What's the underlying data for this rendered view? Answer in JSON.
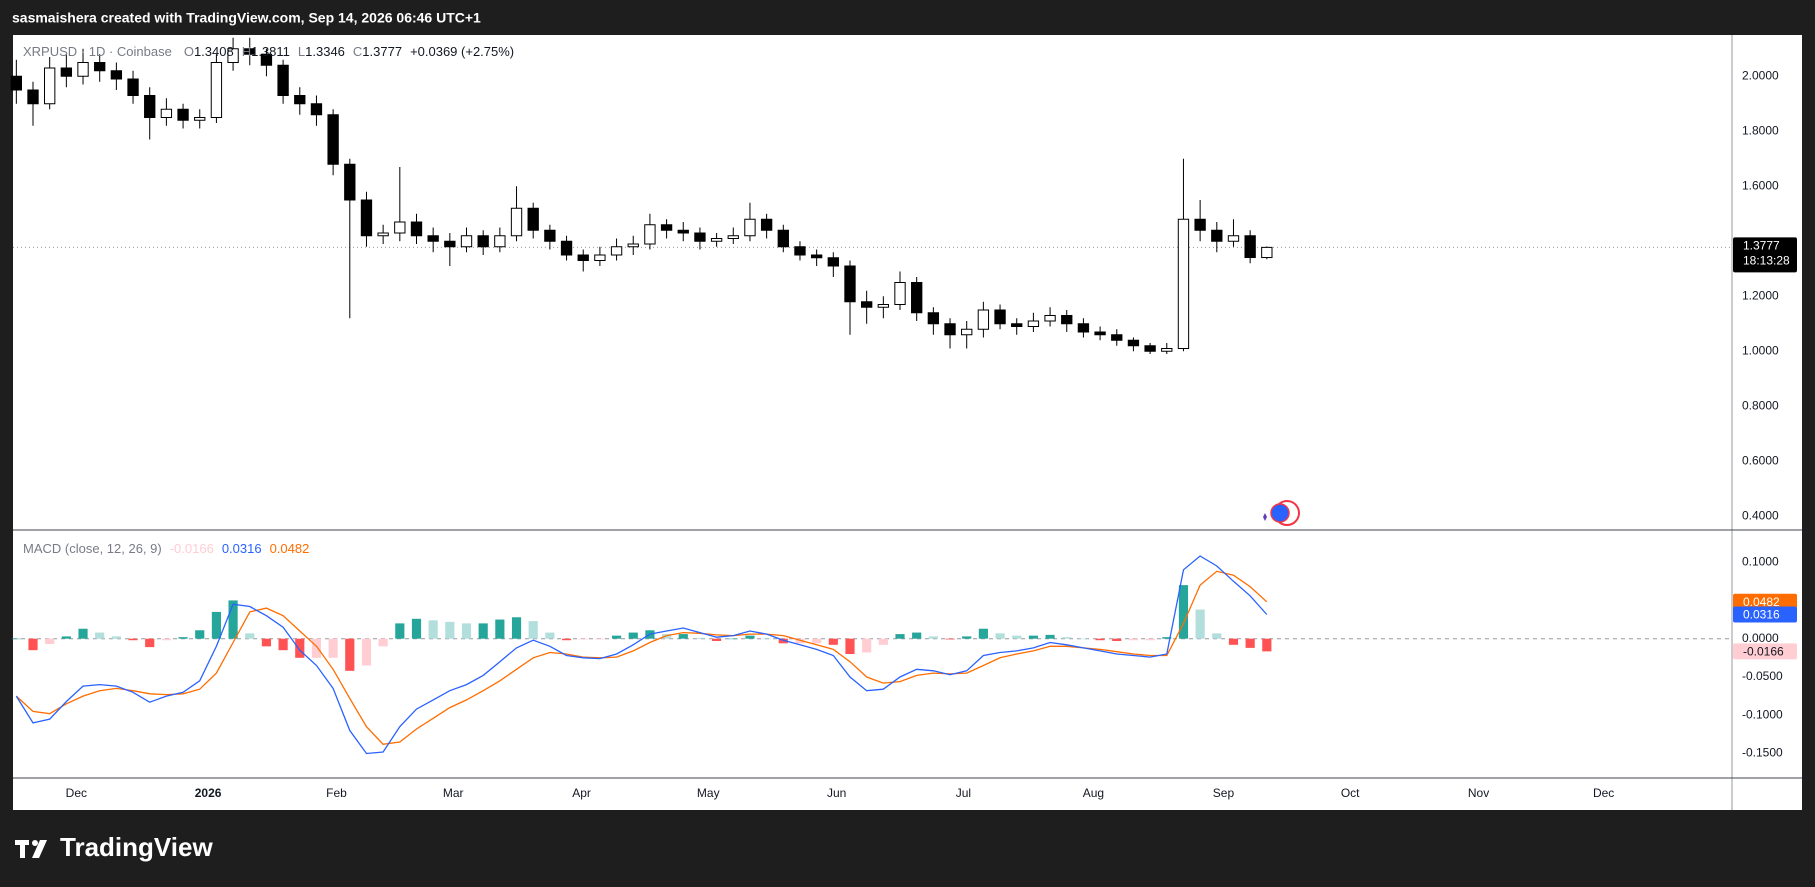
{
  "header": {
    "text": "sasmaishera created with TradingView.com, Sep 14, 2026 06:46 UTC+1"
  },
  "chart_data": [
    {
      "type": "candlestick",
      "symbol": "XRPUSD · 1D · Coinbase",
      "ohlc_labels": [
        "O",
        "H",
        "L",
        "C"
      ],
      "change": "+0.0369 (+2.75%)",
      "countdown": "18:13:28",
      "up_color": "#ffffff",
      "down_color": "#000000",
      "border_color": "#000000",
      "grid": false,
      "open": [
        2.0,
        1.95,
        1.9,
        2.03,
        2.0,
        2.05,
        2.02,
        1.99,
        1.93,
        1.85,
        1.88,
        1.84,
        1.85,
        2.05,
        2.1,
        2.08,
        2.04,
        1.93,
        1.9,
        1.86,
        1.68,
        1.55,
        1.42,
        1.43,
        1.47,
        1.42,
        1.4,
        1.38,
        1.42,
        1.38,
        1.42,
        1.52,
        1.44,
        1.4,
        1.35,
        1.33,
        1.35,
        1.38,
        1.39,
        1.46,
        1.44,
        1.43,
        1.4,
        1.41,
        1.42,
        1.48,
        1.44,
        1.38,
        1.35,
        1.34,
        1.31,
        1.18,
        1.16,
        1.17,
        1.25,
        1.14,
        1.1,
        1.06,
        1.08,
        1.15,
        1.1,
        1.09,
        1.11,
        1.13,
        1.1,
        1.07,
        1.06,
        1.04,
        1.02,
        1.0,
        1.01,
        1.48,
        1.44,
        1.4,
        1.42,
        1.3408
      ],
      "high": [
        2.06,
        1.98,
        2.07,
        2.08,
        2.1,
        2.08,
        2.05,
        2.02,
        1.96,
        1.92,
        1.9,
        1.88,
        2.08,
        2.14,
        2.14,
        2.1,
        2.06,
        1.96,
        1.93,
        1.88,
        1.7,
        1.58,
        1.46,
        1.67,
        1.5,
        1.45,
        1.43,
        1.45,
        1.44,
        1.45,
        1.6,
        1.54,
        1.46,
        1.42,
        1.37,
        1.38,
        1.41,
        1.42,
        1.5,
        1.48,
        1.47,
        1.45,
        1.43,
        1.45,
        1.54,
        1.5,
        1.46,
        1.4,
        1.37,
        1.36,
        1.33,
        1.22,
        1.2,
        1.29,
        1.27,
        1.16,
        1.12,
        1.11,
        1.18,
        1.17,
        1.12,
        1.14,
        1.16,
        1.15,
        1.12,
        1.09,
        1.08,
        1.05,
        1.03,
        1.03,
        1.7,
        1.55,
        1.47,
        1.48,
        1.44,
        1.3811
      ],
      "low": [
        1.9,
        1.82,
        1.88,
        1.96,
        1.97,
        1.98,
        1.95,
        1.9,
        1.77,
        1.82,
        1.81,
        1.81,
        1.83,
        2.02,
        2.04,
        2.0,
        1.9,
        1.86,
        1.82,
        1.64,
        1.12,
        1.38,
        1.39,
        1.4,
        1.39,
        1.36,
        1.31,
        1.36,
        1.35,
        1.36,
        1.4,
        1.41,
        1.37,
        1.33,
        1.29,
        1.31,
        1.33,
        1.35,
        1.37,
        1.41,
        1.4,
        1.37,
        1.38,
        1.39,
        1.4,
        1.41,
        1.36,
        1.33,
        1.31,
        1.27,
        1.06,
        1.1,
        1.12,
        1.15,
        1.11,
        1.06,
        1.01,
        1.01,
        1.05,
        1.08,
        1.06,
        1.07,
        1.09,
        1.07,
        1.05,
        1.04,
        1.02,
        1.0,
        0.99,
        0.99,
        1.0,
        1.4,
        1.36,
        1.38,
        1.32,
        1.3346
      ],
      "close": [
        1.95,
        1.9,
        2.03,
        2.0,
        2.05,
        2.02,
        1.99,
        1.93,
        1.85,
        1.88,
        1.84,
        1.85,
        2.05,
        2.1,
        2.08,
        2.04,
        1.93,
        1.9,
        1.86,
        1.68,
        1.55,
        1.42,
        1.43,
        1.47,
        1.42,
        1.4,
        1.38,
        1.42,
        1.38,
        1.42,
        1.52,
        1.44,
        1.4,
        1.35,
        1.33,
        1.35,
        1.38,
        1.39,
        1.46,
        1.44,
        1.43,
        1.4,
        1.41,
        1.42,
        1.48,
        1.44,
        1.38,
        1.35,
        1.34,
        1.31,
        1.18,
        1.16,
        1.17,
        1.25,
        1.14,
        1.1,
        1.06,
        1.08,
        1.15,
        1.1,
        1.09,
        1.11,
        1.13,
        1.1,
        1.07,
        1.06,
        1.04,
        1.02,
        1.0,
        1.01,
        1.48,
        1.44,
        1.4,
        1.42,
        1.3408,
        1.3777
      ],
      "ylim": [
        0.35,
        2.15
      ],
      "yticks": [
        {
          "value": 0.4,
          "label": "0.4000"
        },
        {
          "value": 0.6,
          "label": "0.6000"
        },
        {
          "value": 0.8,
          "label": "0.8000"
        },
        {
          "value": 1.0,
          "label": "1.0000"
        },
        {
          "value": 1.2,
          "label": "1.2000"
        },
        {
          "value": 1.6,
          "label": "1.6000"
        },
        {
          "value": 1.8,
          "label": "1.8000"
        },
        {
          "value": 2.0,
          "label": "2.0000"
        }
      ],
      "xlim": [
        -0.2,
        102.9
      ],
      "xticks": [
        {
          "value": 3.6,
          "label": "Dec"
        },
        {
          "value": 11.5,
          "label": "2026"
        },
        {
          "value": 19.2,
          "label": "Feb"
        },
        {
          "value": 26.2,
          "label": "Mar"
        },
        {
          "value": 33.9,
          "label": "Apr"
        },
        {
          "value": 41.5,
          "label": "May"
        },
        {
          "value": 49.2,
          "label": "Jun"
        },
        {
          "value": 56.8,
          "label": "Jul"
        },
        {
          "value": 64.6,
          "label": "Aug"
        },
        {
          "value": 72.4,
          "label": "Sep"
        },
        {
          "value": 80.0,
          "label": "Oct"
        },
        {
          "value": 87.7,
          "label": "Nov"
        },
        {
          "value": 95.2,
          "label": "Dec"
        }
      ]
    },
    {
      "type": "macd",
      "title": "MACD (close, 12, 26, 9)",
      "histogram": {
        "colors": {
          "grow_above": "#26a69a",
          "fall_above": "#b2dfdb",
          "grow_below": "#ffcdd2",
          "fall_below": "#ff5252"
        },
        "values": [
          0.0,
          -0.015,
          -0.007,
          0.003,
          0.013,
          0.008,
          0.003,
          -0.002,
          -0.011,
          -0.002,
          0.002,
          0.011,
          0.035,
          0.05,
          0.007,
          -0.01,
          -0.015,
          -0.025,
          -0.025,
          -0.025,
          -0.042,
          -0.035,
          -0.01,
          0.02,
          0.026,
          0.024,
          0.022,
          0.02,
          0.02,
          0.025,
          0.028,
          0.023,
          0.008,
          -0.002,
          -0.001,
          -0.001,
          0.004,
          0.008,
          0.011,
          0.006,
          0.006,
          0.001,
          -0.003,
          0.0,
          0.004,
          0.0,
          -0.006,
          -0.006,
          -0.006,
          -0.008,
          -0.02,
          -0.018,
          -0.008,
          0.006,
          0.008,
          0.003,
          -0.001,
          0.003,
          0.013,
          0.007,
          0.004,
          0.004,
          0.005,
          0.002,
          0.0,
          -0.002,
          -0.003,
          -0.002,
          -0.002,
          0.002,
          0.07,
          0.038,
          0.007,
          -0.008,
          -0.012,
          -0.0166
        ]
      },
      "macd": {
        "color": "#2962ff",
        "values": [
          -0.075,
          -0.11,
          -0.105,
          -0.082,
          -0.062,
          -0.06,
          -0.062,
          -0.07,
          -0.083,
          -0.075,
          -0.07,
          -0.055,
          -0.01,
          0.045,
          0.042,
          0.03,
          0.015,
          -0.015,
          -0.035,
          -0.065,
          -0.12,
          -0.15,
          -0.148,
          -0.115,
          -0.092,
          -0.08,
          -0.068,
          -0.06,
          -0.048,
          -0.03,
          -0.012,
          -0.002,
          -0.01,
          -0.022,
          -0.025,
          -0.026,
          -0.02,
          -0.008,
          0.006,
          0.01,
          0.014,
          0.008,
          0.002,
          0.004,
          0.01,
          0.006,
          -0.002,
          -0.008,
          -0.014,
          -0.022,
          -0.05,
          -0.068,
          -0.066,
          -0.05,
          -0.04,
          -0.042,
          -0.047,
          -0.042,
          -0.022,
          -0.018,
          -0.016,
          -0.012,
          -0.005,
          -0.008,
          -0.012,
          -0.016,
          -0.02,
          -0.022,
          -0.024,
          -0.02,
          0.09,
          0.108,
          0.095,
          0.075,
          0.056,
          0.0316
        ]
      },
      "signal": {
        "color": "#ff6d00",
        "values": [
          -0.075,
          -0.095,
          -0.098,
          -0.085,
          -0.075,
          -0.068,
          -0.065,
          -0.068,
          -0.072,
          -0.073,
          -0.072,
          -0.066,
          -0.045,
          -0.005,
          0.035,
          0.04,
          0.03,
          0.01,
          -0.01,
          -0.04,
          -0.078,
          -0.115,
          -0.138,
          -0.135,
          -0.118,
          -0.104,
          -0.09,
          -0.08,
          -0.068,
          -0.055,
          -0.04,
          -0.025,
          -0.018,
          -0.02,
          -0.024,
          -0.025,
          -0.024,
          -0.016,
          -0.005,
          0.004,
          0.008,
          0.007,
          0.005,
          0.004,
          0.006,
          0.006,
          0.004,
          -0.002,
          -0.008,
          -0.014,
          -0.03,
          -0.05,
          -0.058,
          -0.056,
          -0.048,
          -0.045,
          -0.046,
          -0.045,
          -0.035,
          -0.025,
          -0.02,
          -0.016,
          -0.01,
          -0.01,
          -0.012,
          -0.014,
          -0.017,
          -0.02,
          -0.022,
          -0.022,
          0.02,
          0.07,
          0.088,
          0.083,
          0.068,
          0.0482
        ]
      },
      "ylim": [
        -0.182,
        0.142
      ],
      "yticks": [
        {
          "value": -0.15,
          "label": "-0.1500"
        },
        {
          "value": -0.1,
          "label": "-0.1000"
        },
        {
          "value": -0.05,
          "label": "-0.0500"
        },
        {
          "value": 0,
          "label": "0.0000"
        },
        {
          "value": 0.1,
          "label": "0.1000"
        }
      ]
    }
  ],
  "footer": {
    "logo": "TradingView"
  }
}
